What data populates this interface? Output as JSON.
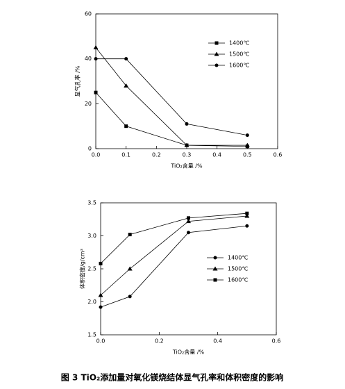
{
  "chart_data": [
    {
      "type": "line",
      "x_label": "TiO₂含量 /%",
      "y_label": "显气孔率 /%",
      "x": [
        0,
        0.1,
        0.3,
        0.5
      ],
      "xlim": [
        0,
        0.6
      ],
      "xticks": [
        {
          "value": 0,
          "label": "0.0"
        },
        {
          "value": 0.1,
          "label": "0.1"
        },
        {
          "value": 0.2,
          "label": "0.2"
        },
        {
          "value": 0.3,
          "label": "0.3"
        },
        {
          "value": 0.4,
          "label": "0.4"
        },
        {
          "value": 0.5,
          "label": "0.5"
        },
        {
          "value": 0.6,
          "label": "0.6"
        }
      ],
      "ylim": [
        0,
        60
      ],
      "yticks": [
        0,
        20,
        40,
        60
      ],
      "legend": "upper right",
      "series": [
        {
          "name": "1400℃",
          "color": "#000000",
          "marker": "square",
          "values": [
            25,
            10,
            1.5,
            1
          ]
        },
        {
          "name": "1500℃",
          "color": "#000000",
          "marker": "triangle",
          "values": [
            45,
            28,
            1.5,
            1.5
          ]
        },
        {
          "name": "1600℃",
          "color": "#000000",
          "marker": "circle",
          "values": [
            40,
            40,
            11,
            6
          ]
        }
      ]
    },
    {
      "type": "line",
      "x_label": "TiO₂含量 /%",
      "y_label": "体积密度/g/cm³",
      "x": [
        0,
        0.1,
        0.3,
        0.5
      ],
      "xlim": [
        0,
        0.6
      ],
      "xticks": [
        {
          "value": 0,
          "label": "0.0"
        },
        {
          "value": 0.2,
          "label": "0.2"
        },
        {
          "value": 0.4,
          "label": "0.4"
        },
        {
          "value": 0.6,
          "label": "0.6"
        }
      ],
      "ylim": [
        1.5,
        3.5
      ],
      "yticks": [
        1.5,
        {
          "value": 2,
          "label": "2.0"
        },
        2.5,
        {
          "value": 3,
          "label": "3.0"
        },
        3.5
      ],
      "legend": "center right",
      "series": [
        {
          "name": "1400℃",
          "color": "#000000",
          "marker": "circle",
          "values": [
            1.92,
            2.08,
            3.05,
            3.15
          ]
        },
        {
          "name": "1500℃",
          "color": "#000000",
          "marker": "triangle",
          "values": [
            2.1,
            2.5,
            3.22,
            3.3
          ]
        },
        {
          "name": "1600℃",
          "color": "#000000",
          "marker": "square",
          "values": [
            2.58,
            3.02,
            3.27,
            3.34
          ]
        }
      ]
    }
  ],
  "caption": "图 3 TiO₂添加量对氧化镁烧结体显气孔率和体积密度的影响"
}
